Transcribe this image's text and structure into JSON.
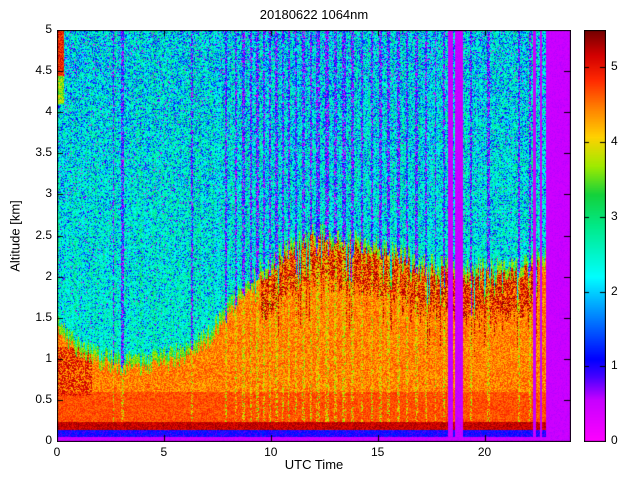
{
  "chart_data": {
    "type": "heatmap",
    "title": "20180622 1064nm",
    "xlabel": "UTC Time",
    "ylabel": "Altitude [km]",
    "x_range": [
      0,
      24
    ],
    "y_range": [
      0,
      5
    ],
    "x_ticks": [
      0,
      5,
      10,
      15,
      20
    ],
    "y_ticks": [
      0,
      0.5,
      1,
      1.5,
      2,
      2.5,
      3,
      3.5,
      4,
      4.5,
      5
    ],
    "colorbar": {
      "ticks": [
        0,
        1,
        2,
        3,
        4,
        5
      ],
      "range": [
        0,
        5.5
      ]
    },
    "colormap": "jet-with-magenta-low",
    "boundary_layer_top": {
      "t_utc": [
        0,
        1,
        2,
        3,
        4,
        5,
        6,
        7,
        8,
        9,
        10,
        11,
        12,
        13,
        14,
        15,
        16,
        17,
        18,
        19,
        20,
        21,
        22,
        22.8
      ],
      "h_km": [
        1.35,
        1.1,
        0.95,
        0.9,
        0.9,
        0.95,
        1.0,
        1.2,
        1.55,
        1.85,
        2.1,
        2.3,
        2.45,
        2.4,
        2.35,
        2.3,
        2.2,
        2.1,
        2.05,
        2.0,
        2.05,
        2.0,
        2.1,
        2.15
      ]
    },
    "surface_peak_km": 0.2,
    "data_gaps_utc": [
      [
        18.25,
        18.95
      ],
      [
        22.25,
        22.4
      ],
      [
        22.55,
        22.68
      ],
      [
        22.85,
        24
      ]
    ],
    "gap_inner_columns_utc": [
      18.55
    ],
    "attenuated_columns_utc": [
      2.62,
      3.05,
      6.3,
      7.9,
      8.35,
      8.7,
      9.05,
      9.35,
      9.65,
      9.95,
      10.25,
      10.55,
      10.85,
      11.15,
      11.5,
      11.85,
      12.2,
      12.6,
      13.0,
      13.4,
      13.8,
      14.25,
      14.7,
      15.1,
      15.5,
      15.95,
      16.35,
      16.8,
      17.25,
      17.7,
      18.1,
      19.35,
      20.15,
      21.6,
      22.1
    ],
    "value_levels": {
      "background_noise": [
        2.1,
        3.0
      ],
      "blue_specks": [
        0.9,
        1.8
      ],
      "aerosol_layer": [
        4.1,
        4.8
      ],
      "dense_layer_top": [
        5.0,
        5.45
      ],
      "surface_line": [
        5.0,
        5.4
      ],
      "gap_fill": [
        0.45,
        0.6
      ]
    }
  }
}
